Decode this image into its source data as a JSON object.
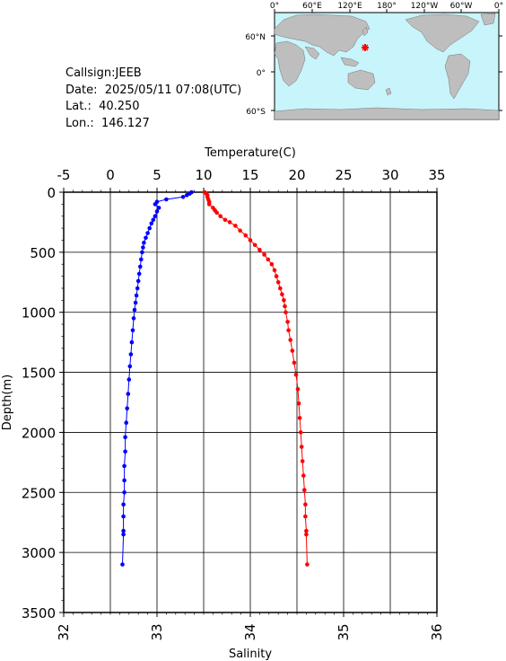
{
  "station": {
    "callsign": "Callsign:JEEB",
    "date": "Date:  2025/05/11 07:08(UTC)",
    "lat": "Lat.:  40.250",
    "lon": "Lon.:  146.127"
  },
  "map": {
    "top_ticks": [
      "0°",
      "60°E",
      "120°E",
      "180°",
      "120°W",
      "60°W",
      "0°"
    ],
    "left_ticks": [
      "60°N",
      "0°",
      "60°S"
    ],
    "colors": {
      "ocean": "#c8f4fb",
      "land": "#bebebe",
      "marker": "#ff0000"
    },
    "marker": {
      "lat": 40.25,
      "lon": 146.127
    }
  },
  "chart_data": {
    "type": "scatter",
    "top_axis": {
      "label": "Temperature(C)",
      "ticks": [
        "-5",
        "0",
        "5",
        "10",
        "15",
        "20",
        "25",
        "30",
        "35"
      ],
      "range": [
        -5,
        35
      ]
    },
    "bottom_axis": {
      "label": "Salinity",
      "ticks": [
        "32",
        "33",
        "34",
        "35",
        "36"
      ],
      "range": [
        32,
        36
      ]
    },
    "left_axis": {
      "label": "Depth(m)",
      "ticks": [
        "0",
        "500",
        "1000",
        "1500",
        "2000",
        "2500",
        "3000",
        "3500"
      ],
      "range": [
        0,
        3500
      ],
      "inverted": true
    },
    "grid": true,
    "series": [
      {
        "variable": "temperature",
        "color": "#ff0000",
        "axis": "top",
        "points": [
          [
            10.1,
            0
          ],
          [
            10.3,
            12
          ],
          [
            10.4,
            25
          ],
          [
            10.4,
            40
          ],
          [
            10.5,
            60
          ],
          [
            10.6,
            80
          ],
          [
            10.6,
            100
          ],
          [
            11.0,
            130
          ],
          [
            11.2,
            150
          ],
          [
            11.4,
            170
          ],
          [
            11.8,
            200
          ],
          [
            12.3,
            230
          ],
          [
            12.8,
            250
          ],
          [
            13.4,
            280
          ],
          [
            13.9,
            320
          ],
          [
            14.5,
            360
          ],
          [
            15.0,
            400
          ],
          [
            15.5,
            440
          ],
          [
            16.0,
            480
          ],
          [
            16.5,
            520
          ],
          [
            16.9,
            560
          ],
          [
            17.3,
            600
          ],
          [
            17.6,
            650
          ],
          [
            17.8,
            700
          ],
          [
            18.0,
            750
          ],
          [
            18.2,
            800
          ],
          [
            18.4,
            850
          ],
          [
            18.6,
            900
          ],
          [
            18.7,
            950
          ],
          [
            18.8,
            1000
          ],
          [
            19.0,
            1080
          ],
          [
            19.1,
            1150
          ],
          [
            19.3,
            1230
          ],
          [
            19.5,
            1320
          ],
          [
            19.7,
            1420
          ],
          [
            19.9,
            1520
          ],
          [
            20.1,
            1640
          ],
          [
            20.2,
            1760
          ],
          [
            20.3,
            1880
          ],
          [
            20.4,
            2000
          ],
          [
            20.5,
            2120
          ],
          [
            20.6,
            2240
          ],
          [
            20.7,
            2360
          ],
          [
            20.8,
            2480
          ],
          [
            20.9,
            2600
          ],
          [
            20.9,
            2700
          ],
          [
            21.0,
            2820
          ],
          [
            21.0,
            2850
          ],
          [
            21.1,
            3100
          ]
        ]
      },
      {
        "variable": "salinity",
        "color": "#0000ff",
        "axis": "bottom",
        "points": [
          [
            33.37,
            0
          ],
          [
            33.35,
            12
          ],
          [
            33.32,
            25
          ],
          [
            33.28,
            40
          ],
          [
            33.1,
            60
          ],
          [
            33.0,
            80
          ],
          [
            32.98,
            100
          ],
          [
            33.02,
            130
          ],
          [
            33.0,
            160
          ],
          [
            32.98,
            200
          ],
          [
            32.96,
            230
          ],
          [
            32.94,
            260
          ],
          [
            32.92,
            300
          ],
          [
            32.9,
            340
          ],
          [
            32.88,
            380
          ],
          [
            32.86,
            420
          ],
          [
            32.85,
            460
          ],
          [
            32.84,
            500
          ],
          [
            32.83,
            560
          ],
          [
            32.82,
            620
          ],
          [
            32.81,
            680
          ],
          [
            32.8,
            740
          ],
          [
            32.79,
            800
          ],
          [
            32.78,
            860
          ],
          [
            32.77,
            920
          ],
          [
            32.76,
            980
          ],
          [
            32.75,
            1050
          ],
          [
            32.74,
            1150
          ],
          [
            32.73,
            1250
          ],
          [
            32.72,
            1350
          ],
          [
            32.71,
            1450
          ],
          [
            32.7,
            1560
          ],
          [
            32.69,
            1680
          ],
          [
            32.68,
            1800
          ],
          [
            32.67,
            1920
          ],
          [
            32.66,
            2040
          ],
          [
            32.66,
            2160
          ],
          [
            32.65,
            2280
          ],
          [
            32.65,
            2400
          ],
          [
            32.65,
            2500
          ],
          [
            32.64,
            2600
          ],
          [
            32.64,
            2700
          ],
          [
            32.64,
            2820
          ],
          [
            32.64,
            2850
          ],
          [
            32.63,
            3100
          ]
        ]
      }
    ]
  }
}
